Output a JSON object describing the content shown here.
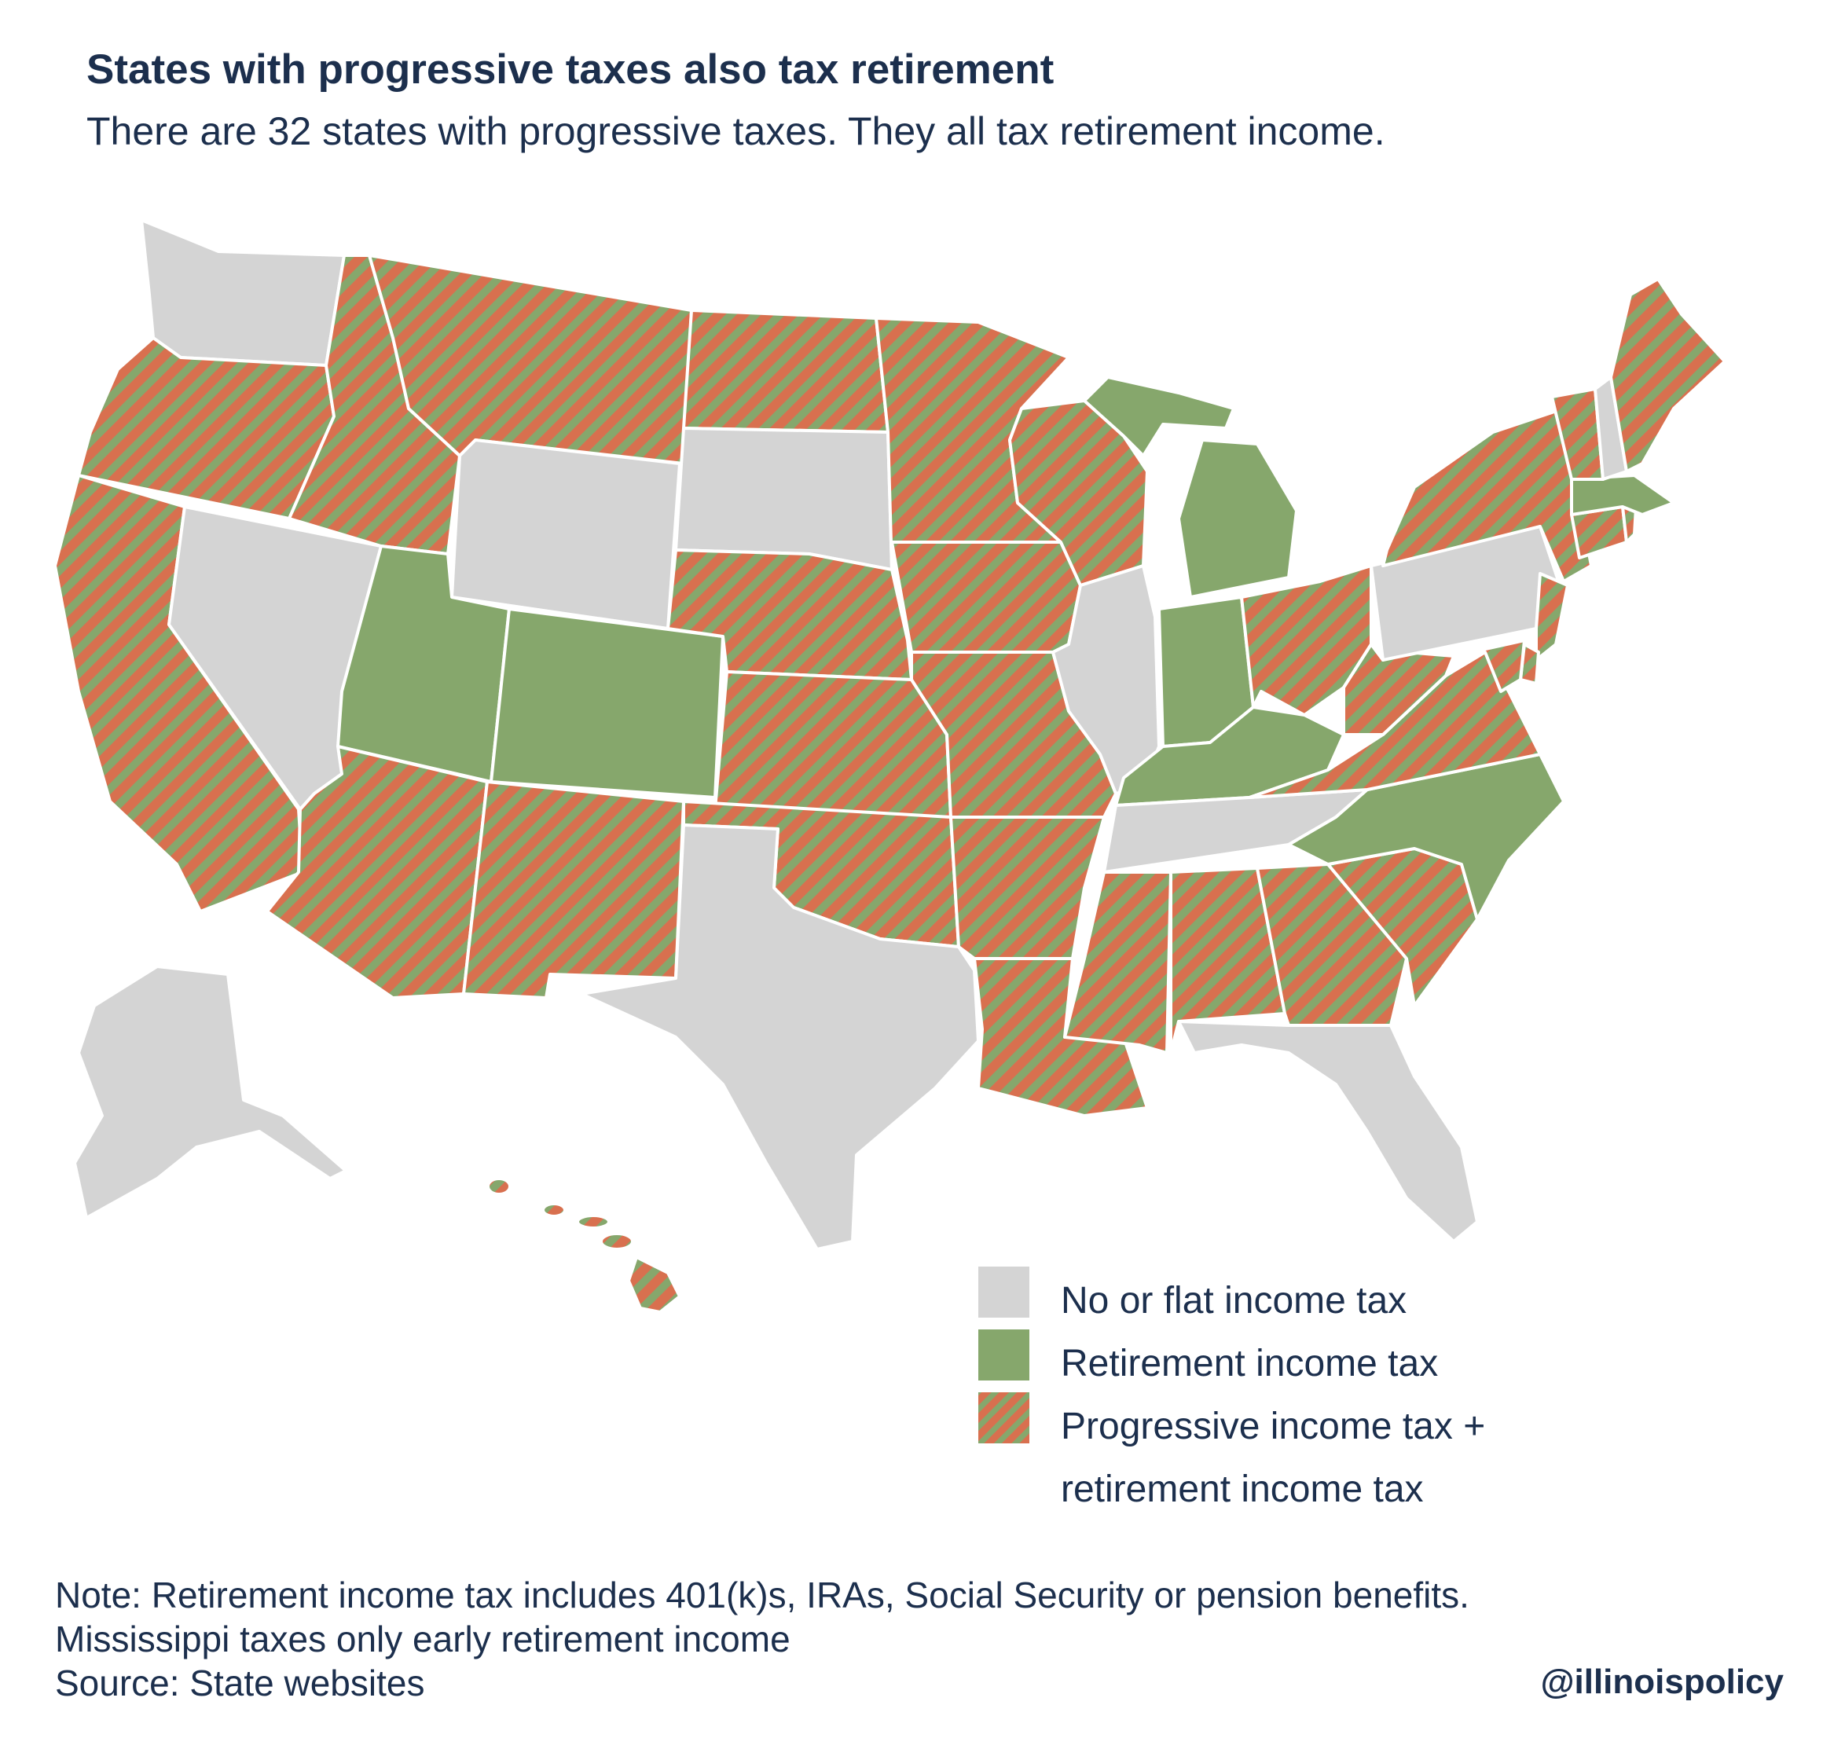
{
  "title": "States with progressive taxes also tax retirement",
  "subtitle": "There are 32 states with progressive taxes. They all tax retirement income.",
  "colors": {
    "no_or_flat": "#d4d4d4",
    "retirement": "#86a76c",
    "stripe_orange": "#d8704f",
    "stripe_green": "#86a76c",
    "border": "#ffffff",
    "text": "#1c2f4d"
  },
  "legend": {
    "items": [
      {
        "key": "no_or_flat",
        "label": "No or flat income tax"
      },
      {
        "key": "retirement",
        "label": "Retirement income tax"
      },
      {
        "key": "progressive",
        "label": "Progressive income tax +",
        "label2": "retirement income tax"
      }
    ]
  },
  "notes": {
    "line1": "Note: Retirement income tax includes 401(k)s, IRAs, Social Security or pension benefits.",
    "line2": "Mississippi taxes only early retirement income",
    "line3": "Source: State websites"
  },
  "handle": "@illinoispolicy",
  "states": {
    "WA": "no_or_flat",
    "OR": "progressive",
    "CA": "progressive",
    "NV": "no_or_flat",
    "ID": "progressive",
    "MT": "progressive",
    "WY": "no_or_flat",
    "UT": "retirement",
    "CO": "retirement",
    "AZ": "progressive",
    "NM": "progressive",
    "ND": "progressive",
    "SD": "no_or_flat",
    "NE": "progressive",
    "KS": "progressive",
    "OK": "progressive",
    "TX": "no_or_flat",
    "MN": "progressive",
    "IA": "progressive",
    "MO": "progressive",
    "AR": "progressive",
    "LA": "progressive",
    "WI": "progressive",
    "IL": "no_or_flat",
    "MI": "retirement",
    "IN": "retirement",
    "KY": "retirement",
    "TN": "no_or_flat",
    "MS": "progressive",
    "AL": "progressive",
    "GA": "progressive",
    "FL": "no_or_flat",
    "SC": "progressive",
    "NC": "retirement",
    "VA": "progressive",
    "WV": "progressive",
    "OH": "progressive",
    "PA": "no_or_flat",
    "NY": "progressive",
    "VT": "progressive",
    "NH": "no_or_flat",
    "ME": "progressive",
    "MA": "retirement",
    "CT": "progressive",
    "RI": "progressive",
    "NJ": "progressive",
    "DE": "progressive",
    "MD": "progressive",
    "AK": "no_or_flat",
    "HI": "progressive"
  }
}
